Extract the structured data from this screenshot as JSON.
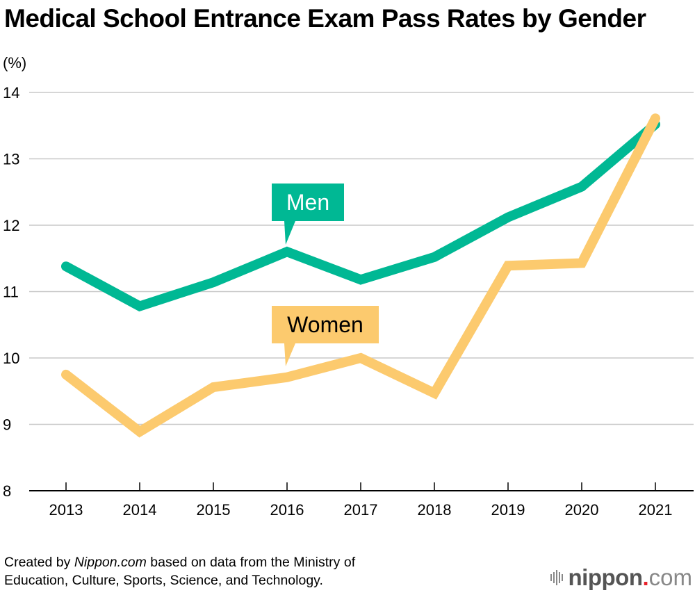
{
  "chart_data": {
    "type": "line",
    "title": "Medical School Entrance Exam Pass Rates by Gender",
    "ylabel": "(%)",
    "xlabel": "",
    "x": [
      "2013",
      "2014",
      "2015",
      "2016",
      "2017",
      "2018",
      "2019",
      "2020",
      "2021"
    ],
    "ylim": [
      8,
      14
    ],
    "yticks": [
      8,
      9,
      10,
      11,
      12,
      13,
      14
    ],
    "grid": true,
    "series": [
      {
        "name": "Men",
        "color": "#00b894",
        "label_text_color": "#ffffff",
        "values": [
          11.38,
          10.78,
          11.14,
          11.6,
          11.18,
          11.52,
          12.12,
          12.58,
          13.52
        ]
      },
      {
        "name": "Women",
        "color": "#fcca6e",
        "label_text_color": "#000000",
        "values": [
          9.75,
          8.89,
          9.56,
          9.71,
          10.0,
          9.47,
          11.39,
          11.43,
          13.61
        ]
      }
    ],
    "annotations": [
      {
        "text": "Men",
        "series": "Men",
        "points_to": "2016"
      },
      {
        "text": "Women",
        "series": "Women",
        "points_to": "2016"
      }
    ]
  },
  "footer": {
    "source_prefix": "Created by ",
    "source_brand": "Nippon.com",
    "source_suffix": " based on data from the Ministry of",
    "source_line2": "Education, Culture, Sports, Science, and Technology.",
    "logo_brand": "nippon",
    "logo_dot": ".",
    "logo_com": "com"
  }
}
